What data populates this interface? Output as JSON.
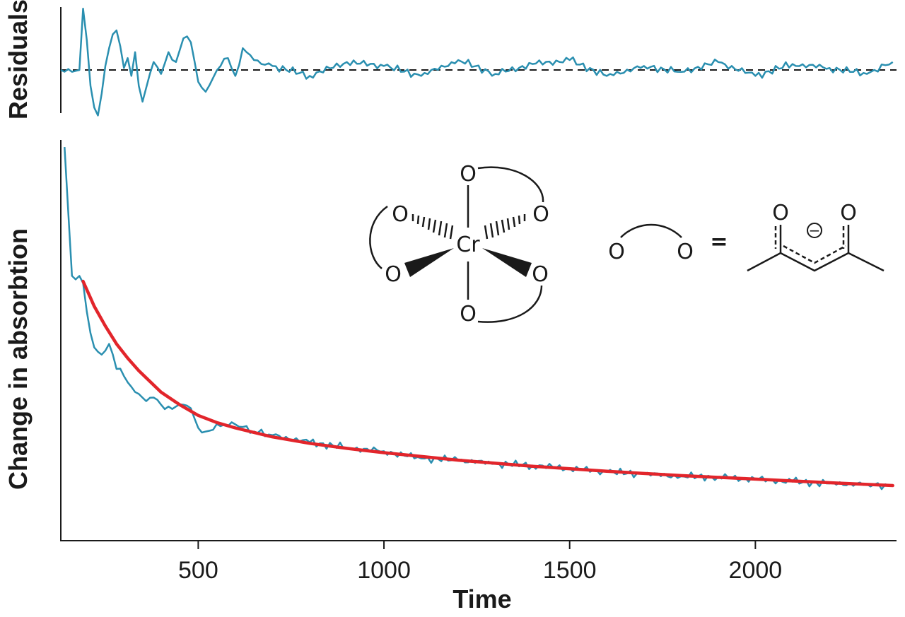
{
  "chart_data": [
    {
      "panel": "residuals",
      "type": "line",
      "ylabel": "Residuals",
      "grid": false,
      "reference_line": {
        "y": 0,
        "style": "dashed",
        "color": "#1a1a1a"
      },
      "series": [
        {
          "color": "#2a8fb0",
          "x": [
            130,
            180,
            190,
            200,
            210,
            220,
            230,
            240,
            250,
            260,
            270,
            280,
            290,
            300,
            310,
            320,
            330,
            340,
            350,
            360,
            380,
            400,
            420,
            440,
            460,
            480,
            500,
            520,
            540,
            560,
            580,
            600,
            620,
            650,
            700,
            800,
            900,
            1000,
            1100,
            1200,
            1300,
            1400,
            1500,
            1600,
            1700,
            1800,
            1900,
            2000,
            2100,
            2200,
            2300,
            2370
          ],
          "y": [
            0,
            0,
            3.1,
            1.5,
            -0.8,
            -1.9,
            -2.3,
            -1.2,
            0.2,
            1.1,
            1.8,
            2.0,
            1.2,
            0.1,
            0.6,
            -0.3,
            0.9,
            -0.8,
            -1.6,
            -0.9,
            0.4,
            -0.2,
            0.9,
            0.4,
            1.6,
            1.4,
            -0.6,
            -1.1,
            -0.4,
            0.2,
            0.6,
            -0.3,
            1.1,
            0.5,
            0.2,
            -0.3,
            0.4,
            0.2,
            -0.3,
            0.5,
            -0.2,
            0.3,
            0.5,
            -0.3,
            0.2,
            -0.1,
            0.4,
            -0.3,
            0.3,
            0.1,
            -0.2,
            0.4
          ]
        }
      ]
    },
    {
      "panel": "absorption",
      "type": "line",
      "xlabel": "Time",
      "ylabel": "Change in absorbtion",
      "xlim": [
        130,
        2380
      ],
      "x_ticks": [
        500,
        1000,
        1500,
        2000
      ],
      "x_tick_labels": [
        "500",
        "1000",
        "1500",
        "2000"
      ],
      "grid": false,
      "series": [
        {
          "color": "#2a8fb0",
          "x": [
            140,
            150,
            160,
            170,
            180,
            190,
            200,
            210,
            220,
            240,
            260,
            280,
            300,
            320,
            340,
            360,
            380,
            400,
            420,
            440,
            460,
            480,
            500,
            520,
            540,
            560,
            600,
            650,
            700,
            800,
            900,
            1000,
            1100,
            1200,
            1300,
            1400,
            1500,
            1600,
            1700,
            1800,
            1900,
            2000,
            2100,
            2200,
            2300,
            2370
          ],
          "y": [
            9.8,
            8.0,
            6.2,
            6.1,
            6.2,
            6.0,
            5.2,
            4.6,
            4.2,
            4.0,
            4.3,
            3.6,
            3.4,
            3.1,
            2.9,
            2.7,
            2.8,
            2.6,
            2.55,
            2.55,
            2.6,
            2.5,
            1.95,
            1.85,
            1.9,
            2.0,
            2.05,
            1.85,
            1.75,
            1.55,
            1.4,
            1.3,
            1.1,
            1.05,
            0.95,
            0.9,
            0.82,
            0.72,
            0.66,
            0.6,
            0.58,
            0.52,
            0.45,
            0.4,
            0.38,
            0.33
          ]
        },
        {
          "color": "#e2252b",
          "x": [
            190,
            220,
            250,
            280,
            310,
            340,
            370,
            400,
            450,
            500,
            550,
            600,
            700,
            800,
            900,
            1000,
            1200,
            1400,
            1600,
            1800,
            2000,
            2200,
            2370
          ],
          "y": [
            6.05,
            5.35,
            4.8,
            4.3,
            3.9,
            3.55,
            3.25,
            2.95,
            2.6,
            2.3,
            2.1,
            1.95,
            1.7,
            1.52,
            1.38,
            1.26,
            1.05,
            0.88,
            0.74,
            0.62,
            0.52,
            0.42,
            0.34
          ]
        }
      ]
    }
  ],
  "structure": {
    "metal": "Cr",
    "atom": "O",
    "equals": "=",
    "charge": "−"
  }
}
